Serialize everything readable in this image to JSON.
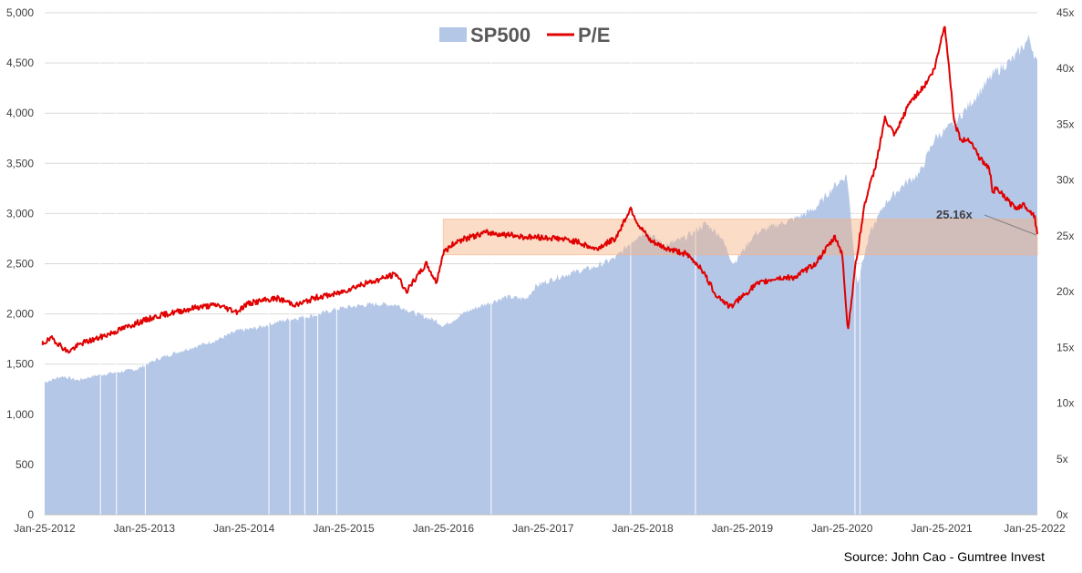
{
  "chart_data": {
    "type": "area",
    "title": "",
    "legend": {
      "placement": "top-center",
      "entries": [
        {
          "name": "SP500",
          "style": "area",
          "color": "#b4c7e7"
        },
        {
          "name": "P/E",
          "style": "line",
          "color": "#e00000"
        }
      ]
    },
    "x_ticks": [
      "Jan-25-2012",
      "Jan-25-2013",
      "Jan-25-2014",
      "Jan-25-2015",
      "Jan-25-2016",
      "Jan-25-2017",
      "Jan-25-2018",
      "Jan-25-2019",
      "Jan-25-2020",
      "Jan-25-2021",
      "Jan-25-2022"
    ],
    "y_left": {
      "ticks": [
        "0",
        "500",
        "1,000",
        "1,500",
        "2,000",
        "2,500",
        "3,000",
        "3,500",
        "4,000",
        "4,500",
        "5,000"
      ],
      "range": [
        0,
        5000
      ]
    },
    "y_right": {
      "ticks": [
        "0x",
        "5x",
        "10x",
        "15x",
        "20x",
        "25x",
        "30x",
        "35x",
        "40x",
        "45x"
      ],
      "range": [
        0,
        45
      ]
    },
    "grid": "horizontal",
    "series": [
      {
        "name": "SP500",
        "axis": "left",
        "x": [
          2012.07,
          2012.25,
          2012.4,
          2012.6,
          2012.8,
          2013.0,
          2013.2,
          2013.4,
          2013.6,
          2013.8,
          2014.0,
          2014.2,
          2014.4,
          2014.6,
          2014.8,
          2015.0,
          2015.2,
          2015.4,
          2015.6,
          2015.8,
          2016.0,
          2016.07,
          2016.3,
          2016.5,
          2016.7,
          2016.9,
          2017.0,
          2017.2,
          2017.4,
          2017.6,
          2017.8,
          2018.0,
          2018.1,
          2018.3,
          2018.5,
          2018.7,
          2018.85,
          2018.98,
          2019.2,
          2019.4,
          2019.6,
          2019.8,
          2020.0,
          2020.12,
          2020.22,
          2020.35,
          2020.5,
          2020.7,
          2020.85,
          2021.0,
          2021.2,
          2021.4,
          2021.6,
          2021.8,
          2021.95,
          2022.03
        ],
        "y": [
          1320,
          1380,
          1340,
          1390,
          1420,
          1450,
          1550,
          1620,
          1680,
          1740,
          1830,
          1860,
          1920,
          1960,
          1990,
          2050,
          2080,
          2100,
          2090,
          2000,
          1930,
          1880,
          2020,
          2100,
          2170,
          2150,
          2280,
          2360,
          2420,
          2470,
          2560,
          2760,
          2820,
          2680,
          2760,
          2900,
          2780,
          2500,
          2800,
          2880,
          2950,
          3050,
          3280,
          3380,
          2300,
          2800,
          3100,
          3300,
          3400,
          3750,
          3900,
          4150,
          4400,
          4550,
          4750,
          4480
        ]
      },
      {
        "name": "P/E",
        "axis": "right",
        "x": [
          2012.0,
          2012.15,
          2012.3,
          2012.45,
          2012.6,
          2012.8,
          2013.0,
          2013.2,
          2013.4,
          2013.6,
          2013.8,
          2014.0,
          2014.1,
          2014.2,
          2014.4,
          2014.6,
          2014.8,
          2015.0,
          2015.2,
          2015.4,
          2015.6,
          2015.7,
          2015.9,
          2016.0,
          2016.07,
          2016.2,
          2016.5,
          2016.7,
          2016.9,
          2017.2,
          2017.4,
          2017.6,
          2017.8,
          2017.95,
          2018.02,
          2018.15,
          2018.3,
          2018.5,
          2018.65,
          2018.8,
          2018.95,
          2019.2,
          2019.4,
          2019.6,
          2019.8,
          2020.0,
          2020.07,
          2020.13,
          2020.2,
          2020.3,
          2020.4,
          2020.5,
          2020.6,
          2020.75,
          2020.9,
          2021.0,
          2021.1,
          2021.2,
          2021.27,
          2021.35,
          2021.45,
          2021.55,
          2021.58,
          2021.62,
          2021.7,
          2021.8,
          2021.9,
          2022.0,
          2022.03
        ],
        "y": [
          15.2,
          15.8,
          14.6,
          15.4,
          15.8,
          16.5,
          17.2,
          17.8,
          18.2,
          18.6,
          18.8,
          18.2,
          18.9,
          19.1,
          19.4,
          18.8,
          19.5,
          19.8,
          20.5,
          21.0,
          21.6,
          20.0,
          22.5,
          20.8,
          23.5,
          24.5,
          25.3,
          25.1,
          24.9,
          24.8,
          24.5,
          23.8,
          24.8,
          27.5,
          26.1,
          24.5,
          23.9,
          23.4,
          22.2,
          19.8,
          18.6,
          20.6,
          21.2,
          21.3,
          22.5,
          24.9,
          23.5,
          16.5,
          22.0,
          28.0,
          31.0,
          35.5,
          34.0,
          37.0,
          38.5,
          40.0,
          44.0,
          35.0,
          33.5,
          33.7,
          32.0,
          31.0,
          29.0,
          29.2,
          28.5,
          27.5,
          27.8,
          26.8,
          25.16
        ]
      }
    ],
    "highlight_band": {
      "x_start": 2016.07,
      "x_end": 2022.03,
      "y_start": 23.3,
      "y_end": 26.5,
      "axis": "right",
      "color": "#f4b183"
    },
    "annotations": [
      {
        "text": "25.16x",
        "x": 2022.03,
        "y": 25.16,
        "axis": "right"
      }
    ],
    "source": "Source: John Cao - Gumtree Invest"
  }
}
